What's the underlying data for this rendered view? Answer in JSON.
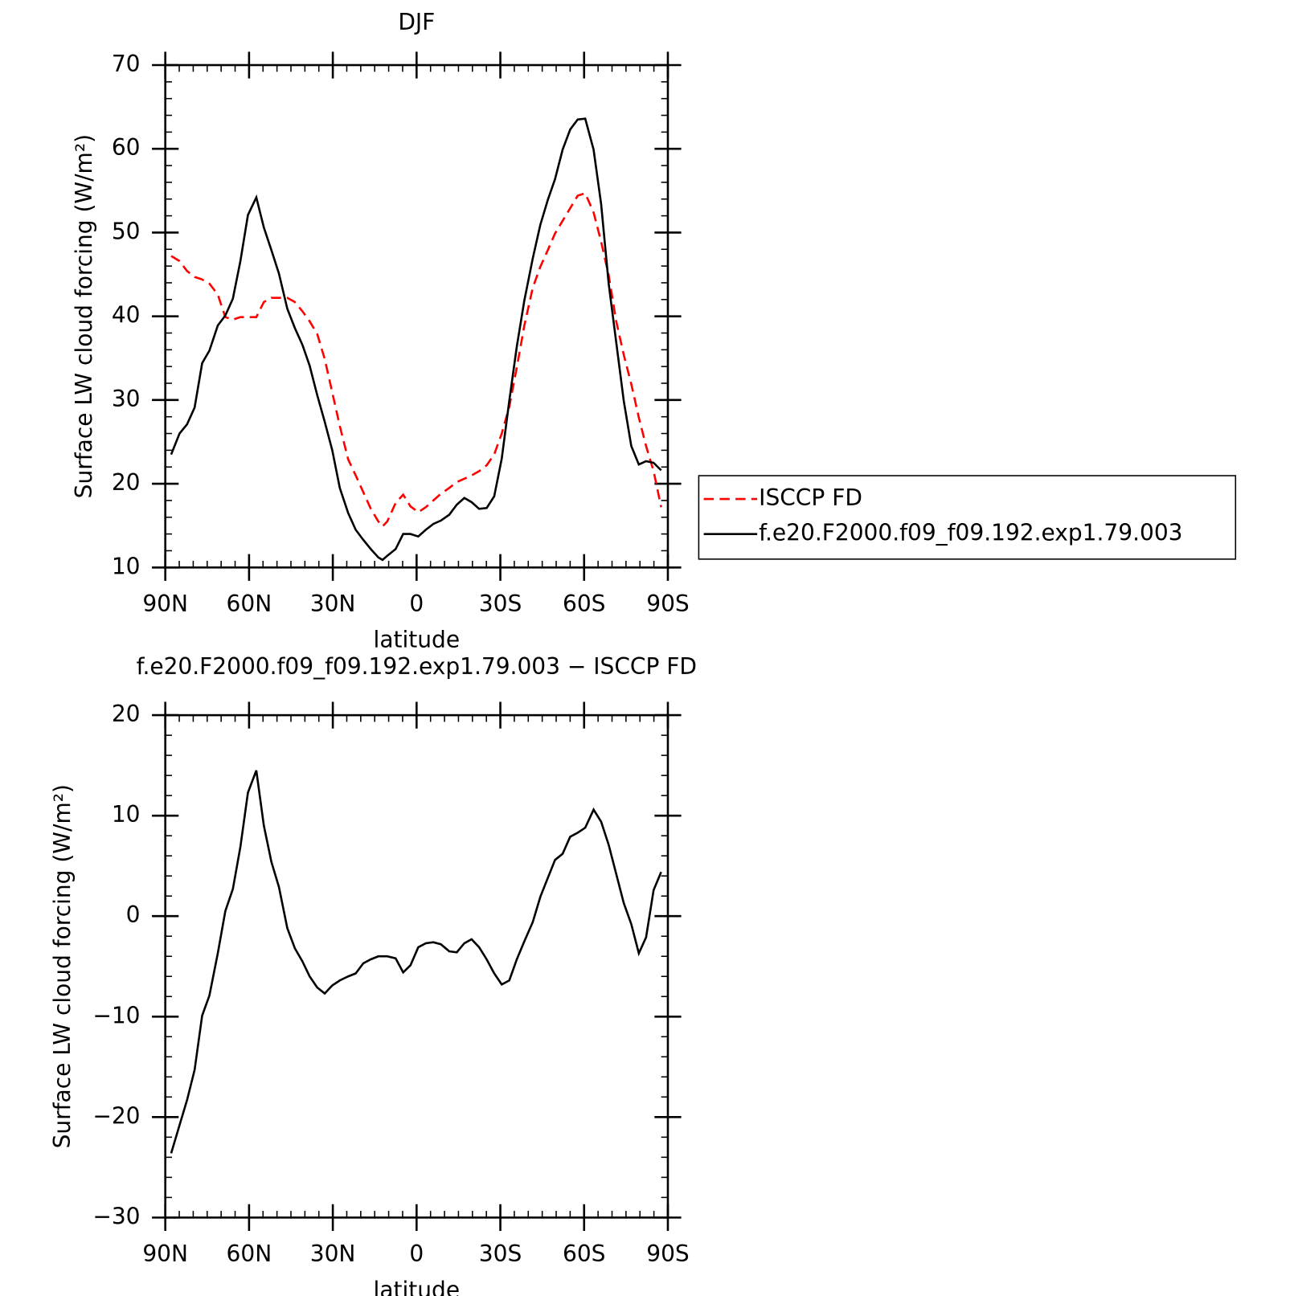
{
  "chart_data": [
    {
      "type": "line",
      "title": "DJF",
      "xlabel": "latitude",
      "ylabel": "Surface LW cloud forcing (W/m²)",
      "x": [
        87.9,
        84.9,
        82.2,
        79.5,
        76.8,
        74.2,
        71.2,
        68.5,
        65.8,
        63.1,
        60.4,
        57.4,
        54.7,
        52,
        49.3,
        46.3,
        43.6,
        40.9,
        38.3,
        35.6,
        32.9,
        30.2,
        27.5,
        24.5,
        21.8,
        19.1,
        16.4,
        13.7,
        12.2,
        10.5,
        7.5,
        4.8,
        2.2,
        -0.6,
        -3.3,
        -6,
        -8.7,
        -11.7,
        -14.4,
        -17.1,
        -19.7,
        -22.4,
        -25.1,
        -27.8,
        -30.5,
        -33.2,
        -35.9,
        -38.6,
        -41.6,
        -44.3,
        -47,
        -49.6,
        -52.3,
        -55,
        -57.7,
        -60.4,
        -63.4,
        -66.1,
        -68.8,
        -71.5,
        -74.2,
        -76.9,
        -79.6,
        -82.2,
        -84.9,
        -87.6
      ],
      "series": [
        {
          "name": "ISCCP FD",
          "color": "#ff0000",
          "dashed": true,
          "values": [
            47.2,
            46.6,
            45.4,
            44.7,
            44.4,
            43.9,
            42.6,
            39.9,
            39.6,
            39.9,
            39.9,
            39.9,
            41.7,
            42.2,
            42.2,
            42.2,
            41.7,
            40.6,
            39.4,
            37.9,
            34.9,
            30.9,
            26.9,
            22.9,
            21,
            19,
            17,
            15.5,
            14.9,
            15.5,
            17.7,
            18.7,
            17.3,
            16.6,
            17.2,
            18,
            18.8,
            19.5,
            20.2,
            20.6,
            21,
            21.5,
            22.2,
            23.5,
            26,
            29.2,
            33.9,
            38.9,
            43.4,
            45.9,
            47.9,
            49.9,
            51.4,
            52.9,
            54.4,
            54.7,
            52.4,
            48.9,
            44.9,
            39.4,
            35.4,
            31.9,
            27.9,
            24.5,
            21.5,
            17.2
          ]
        },
        {
          "name": "f.e20.F2000.f09_f09.192.exp1.79.003",
          "color": "#000000",
          "dashed": false,
          "values": [
            23.5,
            26,
            27.1,
            29.1,
            34.4,
            35.9,
            38.9,
            40.1,
            42.1,
            46.6,
            52.1,
            54.2,
            50.6,
            47.9,
            45.1,
            40.9,
            38.6,
            36.6,
            34.1,
            30.6,
            27.4,
            24,
            19.5,
            16.5,
            14.5,
            13.3,
            12.2,
            11.2,
            10.9,
            11.4,
            12.2,
            14,
            14,
            13.7,
            14.5,
            15.2,
            15.6,
            16.3,
            17.5,
            18.3,
            17.8,
            17,
            17.1,
            18.5,
            23,
            29.9,
            36.4,
            41.9,
            46.9,
            50.9,
            53.9,
            56.4,
            59.9,
            62.3,
            63.5,
            63.6,
            59.9,
            53.4,
            43.9,
            36.9,
            29.9,
            24.5,
            22.3,
            22.7,
            22.5,
            21.6
          ]
        }
      ],
      "xlim": [
        90,
        -90
      ],
      "xticks": [
        {
          "value": 90,
          "label": "90N"
        },
        {
          "value": 60,
          "label": "60N"
        },
        {
          "value": 30,
          "label": "30N"
        },
        0,
        {
          "value": -30,
          "label": "30S"
        },
        {
          "value": -60,
          "label": "60S"
        },
        {
          "value": -90,
          "label": "90S"
        }
      ],
      "ylim": [
        10,
        70
      ],
      "yticks": [
        10,
        20,
        30,
        40,
        50,
        60,
        70
      ],
      "legend": "right"
    },
    {
      "type": "line",
      "title": "f.e20.F2000.f09_f09.192.exp1.79.003 − ISCCP FD",
      "xlabel": "latitude",
      "ylabel": "Surface LW cloud forcing (W/m²)",
      "x": [
        87.9,
        84.9,
        82.2,
        79.5,
        76.8,
        74.2,
        71.2,
        68.5,
        65.8,
        63.1,
        60.4,
        57.4,
        54.7,
        52,
        49.3,
        46.3,
        43.6,
        40.9,
        38.3,
        35.6,
        32.9,
        30.2,
        27.5,
        24.5,
        21.8,
        19.1,
        16.4,
        13.7,
        10.5,
        7.5,
        4.8,
        2.2,
        -0.6,
        -3.3,
        -6,
        -8.7,
        -11.7,
        -14.4,
        -17.1,
        -19.7,
        -22.4,
        -25.1,
        -27.8,
        -30.5,
        -33.2,
        -35.9,
        -38.6,
        -41.6,
        -44.3,
        -47,
        -49.6,
        -52.3,
        -55,
        -57.7,
        -60.4,
        -63.4,
        -66.1,
        -68.8,
        -71.5,
        -74.2,
        -76.9,
        -79.6,
        -82.2,
        -84.9,
        -87.6
      ],
      "series": [
        {
          "color": "#000000",
          "dashed": false,
          "values": [
            -23.6,
            -20.8,
            -18.3,
            -15.3,
            -9.9,
            -7.9,
            -3.7,
            0.5,
            2.7,
            6.9,
            12.3,
            14.5,
            9,
            5.4,
            2.9,
            -1.2,
            -3.2,
            -4.5,
            -6,
            -7.1,
            -7.7,
            -6.9,
            -6.4,
            -6,
            -5.7,
            -4.7,
            -4.3,
            -4,
            -4,
            -4.2,
            -5.6,
            -4.9,
            -3.1,
            -2.7,
            -2.6,
            -2.8,
            -3.5,
            -3.6,
            -2.7,
            -2.3,
            -3.1,
            -4.3,
            -5.7,
            -6.8,
            -6.4,
            -4.3,
            -2.5,
            -0.6,
            1.9,
            3.8,
            5.6,
            6.2,
            7.9,
            8.3,
            8.8,
            10.6,
            9.4,
            7.1,
            4.2,
            1.3,
            -0.8,
            -3.7,
            -2.1,
            2.6,
            4.4
          ]
        }
      ],
      "xlim": [
        90,
        -90
      ],
      "xticks": [
        {
          "value": 90,
          "label": "90N"
        },
        {
          "value": 60,
          "label": "60N"
        },
        {
          "value": 30,
          "label": "30N"
        },
        0,
        {
          "value": -30,
          "label": "30S"
        },
        {
          "value": -60,
          "label": "60S"
        },
        {
          "value": -90,
          "label": "90S"
        }
      ],
      "ylim": [
        -30,
        20
      ],
      "yticks": [
        {
          "value": -30,
          "label": "−30"
        },
        {
          "value": -20,
          "label": "−20"
        },
        {
          "value": -10,
          "label": "−10"
        },
        0,
        10,
        20
      ]
    }
  ]
}
